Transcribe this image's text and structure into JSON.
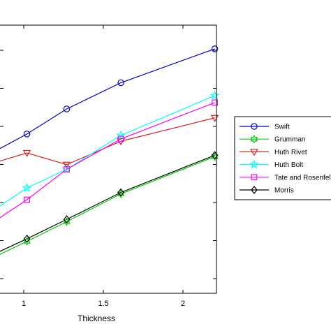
{
  "chart_data": {
    "type": "line",
    "xlabel": "Thickness",
    "xlim": [
      0.8,
      2.2
    ],
    "ylim": [
      0,
      1
    ],
    "x_ticks": [
      1,
      1.5,
      2
    ],
    "x_tick_labels": [
      "1",
      "1.5",
      "2"
    ],
    "grid": false,
    "legend_position": "right, outside plot",
    "series": [
      {
        "name": "Swift",
        "color": "#0000cc",
        "marker": "circle",
        "x": [
          0.8,
          1.02,
          1.27,
          1.61,
          2.2
        ],
        "y": [
          0.6,
          0.681,
          0.788,
          0.9,
          1.045
        ]
      },
      {
        "name": "Grumman",
        "color": "#00cc00",
        "marker": "hexagram",
        "x": [
          0.8,
          1.02,
          1.27,
          1.61,
          2.2
        ],
        "y": [
          0.15,
          0.222,
          0.306,
          0.425,
          0.584
        ]
      },
      {
        "name": "Huth Rivet",
        "color": "#dd2222",
        "marker": "triangle-down",
        "x": [
          0.8,
          1.02,
          1.27,
          1.61,
          2.2
        ],
        "y": [
          0.555,
          0.6,
          0.55,
          0.65,
          0.75
        ]
      },
      {
        "name": "Huth Bolt",
        "color": "#00ffff",
        "marker": "pentagram",
        "x": [
          0.8,
          1.02,
          1.27,
          1.61,
          2.2
        ],
        "y": [
          0.35,
          0.45,
          0.53,
          0.675,
          0.845
        ]
      },
      {
        "name": "Tate and Rosenfeld",
        "color": "#ff00ff",
        "marker": "square",
        "x": [
          0.8,
          1.02,
          1.27,
          1.61,
          2.2
        ],
        "y": [
          0.3,
          0.4,
          0.53,
          0.66,
          0.815
        ]
      },
      {
        "name": "Morris",
        "color": "#000000",
        "marker": "diamond",
        "x": [
          0.8,
          1.02,
          1.27,
          1.61,
          2.2
        ],
        "y": [
          0.163,
          0.233,
          0.316,
          0.431,
          0.59
        ]
      }
    ]
  }
}
